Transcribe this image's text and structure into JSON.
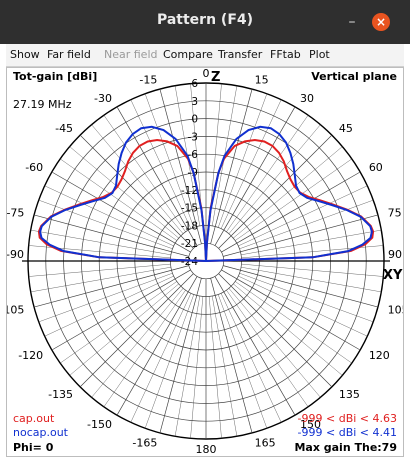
{
  "window": {
    "title": "Pattern  (F4)",
    "minimize_glyph": "–",
    "close_glyph": "×"
  },
  "menu": [
    "Show",
    "Far field",
    "Near field",
    "Compare",
    "Transfer",
    "FFtab",
    "Plot"
  ],
  "menu_disabled": [
    "Near field"
  ],
  "plot": {
    "y_title": "Tot-gain [dBi]",
    "frequency": "27.19 MHz",
    "plane": "Vertical plane",
    "z_label": "Z",
    "xy_label": "XY",
    "phi": "Phi= 0",
    "max_gain": "Max gain The:79"
  },
  "legend": [
    {
      "name": "cap.out",
      "range": "-999 < dBi < 4.63",
      "color": "#e02020"
    },
    {
      "name": "nocap.out",
      "range": "-999 < dBi < 4.41",
      "color": "#1030d0"
    }
  ],
  "chart_data": {
    "type": "line",
    "subtype": "polar",
    "title": "Vertical plane",
    "radial_label": "Tot-gain [dBi]",
    "radial_ticks": [
      6,
      3,
      0,
      -3,
      -6,
      -9,
      -12,
      -15,
      -18,
      -21,
      -24
    ],
    "radial_range": [
      -24,
      6
    ],
    "angle_ticks": [
      0,
      15,
      30,
      45,
      60,
      75,
      90,
      105,
      120,
      135,
      150,
      165,
      180,
      -165,
      -150,
      -135,
      -120,
      -105,
      -90,
      -75,
      -60,
      -45,
      -30,
      -15
    ],
    "angle_units": "deg",
    "series": [
      {
        "name": "cap.out",
        "color": "#e02020",
        "theta": [
          0,
          3,
          5,
          8,
          10,
          14,
          18,
          22,
          26,
          30,
          34,
          38,
          42,
          46,
          50,
          54,
          58,
          62,
          66,
          70,
          74,
          78,
          80,
          82,
          84,
          86,
          88,
          90
        ],
        "gain": [
          -24,
          -20.5,
          -15,
          -9,
          -6.5,
          -4,
          -2.8,
          -2,
          -1.6,
          -1.6,
          -2,
          -2.7,
          -3.6,
          -4.2,
          -4.5,
          -4.4,
          -3.6,
          -2.2,
          -0.6,
          1.3,
          3.2,
          4.4,
          4.6,
          4.3,
          3,
          0.5,
          -6,
          -24
        ]
      },
      {
        "name": "nocap.out",
        "color": "#1030d0",
        "theta": [
          0,
          3,
          5,
          8,
          10,
          14,
          18,
          22,
          26,
          30,
          34,
          38,
          42,
          46,
          50,
          54,
          58,
          62,
          66,
          70,
          74,
          78,
          80,
          82,
          84,
          86,
          88,
          90
        ],
        "gain": [
          -24,
          -21,
          -15.5,
          -9,
          -6,
          -2.8,
          -0.8,
          0.4,
          0.9,
          0.7,
          0.1,
          -0.9,
          -2,
          -3.2,
          -4.2,
          -4.5,
          -3.9,
          -2.5,
          -0.8,
          1.2,
          3.1,
          4.3,
          4.4,
          4,
          2.5,
          0,
          -6,
          -24
        ]
      }
    ],
    "symmetric": true,
    "grid": true
  }
}
